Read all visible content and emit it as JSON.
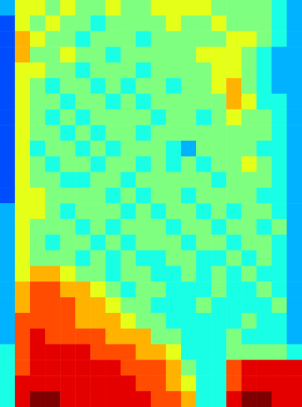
{
  "chart_data": {
    "type": "heatmap",
    "tick_labels": false,
    "value_range": [
      0,
      10
    ],
    "cells": [
      [
        3,
        6,
        6,
        5,
        6,
        5,
        5,
        6,
        5,
        5,
        6,
        6,
        6,
        6,
        5,
        5,
        5,
        5,
        4,
        3
      ],
      [
        2,
        6,
        5,
        6,
        5,
        5,
        4,
        5,
        5,
        5,
        5,
        6,
        5,
        5,
        6,
        5,
        5,
        5,
        4,
        3
      ],
      [
        2,
        7,
        6,
        5,
        5,
        4,
        5,
        5,
        5,
        4,
        5,
        5,
        5,
        5,
        5,
        6,
        6,
        5,
        4,
        3
      ],
      [
        2,
        7,
        5,
        5,
        6,
        5,
        5,
        4,
        5,
        5,
        5,
        5,
        5,
        6,
        6,
        6,
        5,
        4,
        3,
        3
      ],
      [
        2,
        6,
        6,
        5,
        5,
        4,
        5,
        5,
        5,
        4,
        5,
        5,
        5,
        5,
        6,
        6,
        5,
        4,
        3,
        3
      ],
      [
        2,
        6,
        5,
        4,
        5,
        5,
        4,
        5,
        4,
        5,
        5,
        4,
        5,
        5,
        6,
        7,
        5,
        4,
        3,
        3
      ],
      [
        2,
        6,
        5,
        5,
        4,
        5,
        5,
        4,
        5,
        4,
        5,
        5,
        5,
        5,
        5,
        7,
        6,
        4,
        4,
        3
      ],
      [
        2,
        6,
        5,
        4,
        5,
        4,
        5,
        5,
        5,
        5,
        4,
        5,
        5,
        4,
        5,
        6,
        5,
        5,
        4,
        3
      ],
      [
        2,
        6,
        5,
        5,
        4,
        5,
        4,
        5,
        5,
        4,
        5,
        5,
        5,
        5,
        5,
        5,
        5,
        5,
        4,
        3
      ],
      [
        2,
        6,
        4,
        5,
        5,
        4,
        5,
        4,
        5,
        5,
        5,
        4,
        3,
        5,
        5,
        5,
        5,
        4,
        4,
        3
      ],
      [
        2,
        6,
        5,
        4,
        5,
        5,
        4,
        5,
        5,
        4,
        5,
        4,
        5,
        4,
        5,
        5,
        6,
        5,
        4,
        3
      ],
      [
        2,
        6,
        5,
        5,
        4,
        4,
        5,
        5,
        4,
        5,
        5,
        5,
        5,
        5,
        4,
        5,
        5,
        5,
        4,
        3
      ],
      [
        2,
        6,
        6,
        5,
        5,
        5,
        5,
        4,
        5,
        4,
        5,
        5,
        4,
        5,
        5,
        5,
        5,
        4,
        4,
        3
      ],
      [
        3,
        6,
        6,
        5,
        4,
        5,
        5,
        5,
        4,
        5,
        4,
        5,
        5,
        4,
        5,
        4,
        5,
        5,
        4,
        3
      ],
      [
        3,
        6,
        5,
        5,
        5,
        4,
        5,
        4,
        5,
        5,
        5,
        4,
        5,
        5,
        4,
        5,
        5,
        4,
        5,
        3
      ],
      [
        3,
        6,
        5,
        4,
        5,
        5,
        4,
        5,
        4,
        5,
        5,
        5,
        4,
        5,
        5,
        4,
        5,
        5,
        4,
        3
      ],
      [
        3,
        6,
        5,
        5,
        5,
        4,
        5,
        4,
        5,
        4,
        4,
        5,
        5,
        4,
        4,
        5,
        4,
        5,
        4,
        3
      ],
      [
        3,
        6,
        7,
        7,
        6,
        5,
        5,
        4,
        5,
        5,
        4,
        4,
        5,
        4,
        5,
        4,
        5,
        4,
        4,
        3
      ],
      [
        3,
        7,
        8,
        8,
        7,
        7,
        6,
        5,
        4,
        5,
        5,
        4,
        4,
        4,
        5,
        4,
        4,
        5,
        4,
        3
      ],
      [
        3,
        7,
        8,
        8,
        8,
        7,
        7,
        6,
        5,
        5,
        4,
        4,
        4,
        5,
        4,
        4,
        4,
        4,
        5,
        3
      ],
      [
        3,
        8,
        8,
        8,
        8,
        7,
        7,
        7,
        6,
        5,
        5,
        4,
        4,
        4,
        4,
        4,
        5,
        4,
        4,
        3
      ],
      [
        3,
        8,
        9,
        8,
        8,
        8,
        8,
        7,
        7,
        7,
        5,
        5,
        4,
        4,
        4,
        5,
        4,
        4,
        4,
        3
      ],
      [
        4,
        8,
        9,
        9,
        9,
        9,
        8,
        8,
        8,
        7,
        7,
        6,
        4,
        4,
        4,
        5,
        5,
        5,
        5,
        4
      ],
      [
        4,
        8,
        9,
        9,
        9,
        9,
        9,
        9,
        8,
        8,
        8,
        7,
        5,
        4,
        4,
        8,
        9,
        9,
        9,
        9
      ],
      [
        4,
        9,
        9,
        9,
        9,
        9,
        9,
        9,
        9,
        8,
        8,
        7,
        6,
        4,
        4,
        8,
        9,
        9,
        9,
        9
      ],
      [
        4,
        9,
        10,
        10,
        9,
        9,
        9,
        9,
        9,
        9,
        8,
        8,
        7,
        4,
        4,
        9,
        10,
        10,
        9,
        9
      ]
    ]
  }
}
